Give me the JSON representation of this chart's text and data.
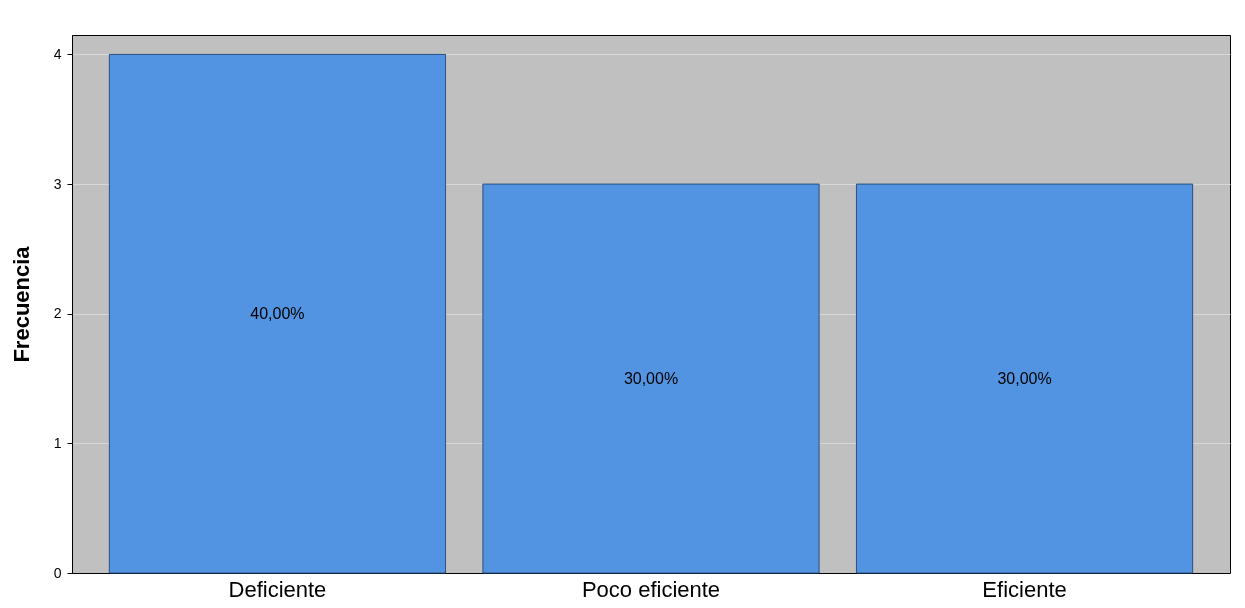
{
  "chart_data": {
    "type": "bar",
    "ylabel": "Frecuencia",
    "categories": [
      "Deficiente",
      "Poco eficiente",
      "Eficiente"
    ],
    "values": [
      4,
      3,
      3
    ],
    "annotations": [
      "40,00%",
      "30,00%",
      "30,00%"
    ],
    "color": "#5294e2",
    "ylim": [
      0,
      4.15
    ],
    "yticks": [
      0,
      1,
      2,
      3,
      4
    ],
    "grid": "y"
  }
}
